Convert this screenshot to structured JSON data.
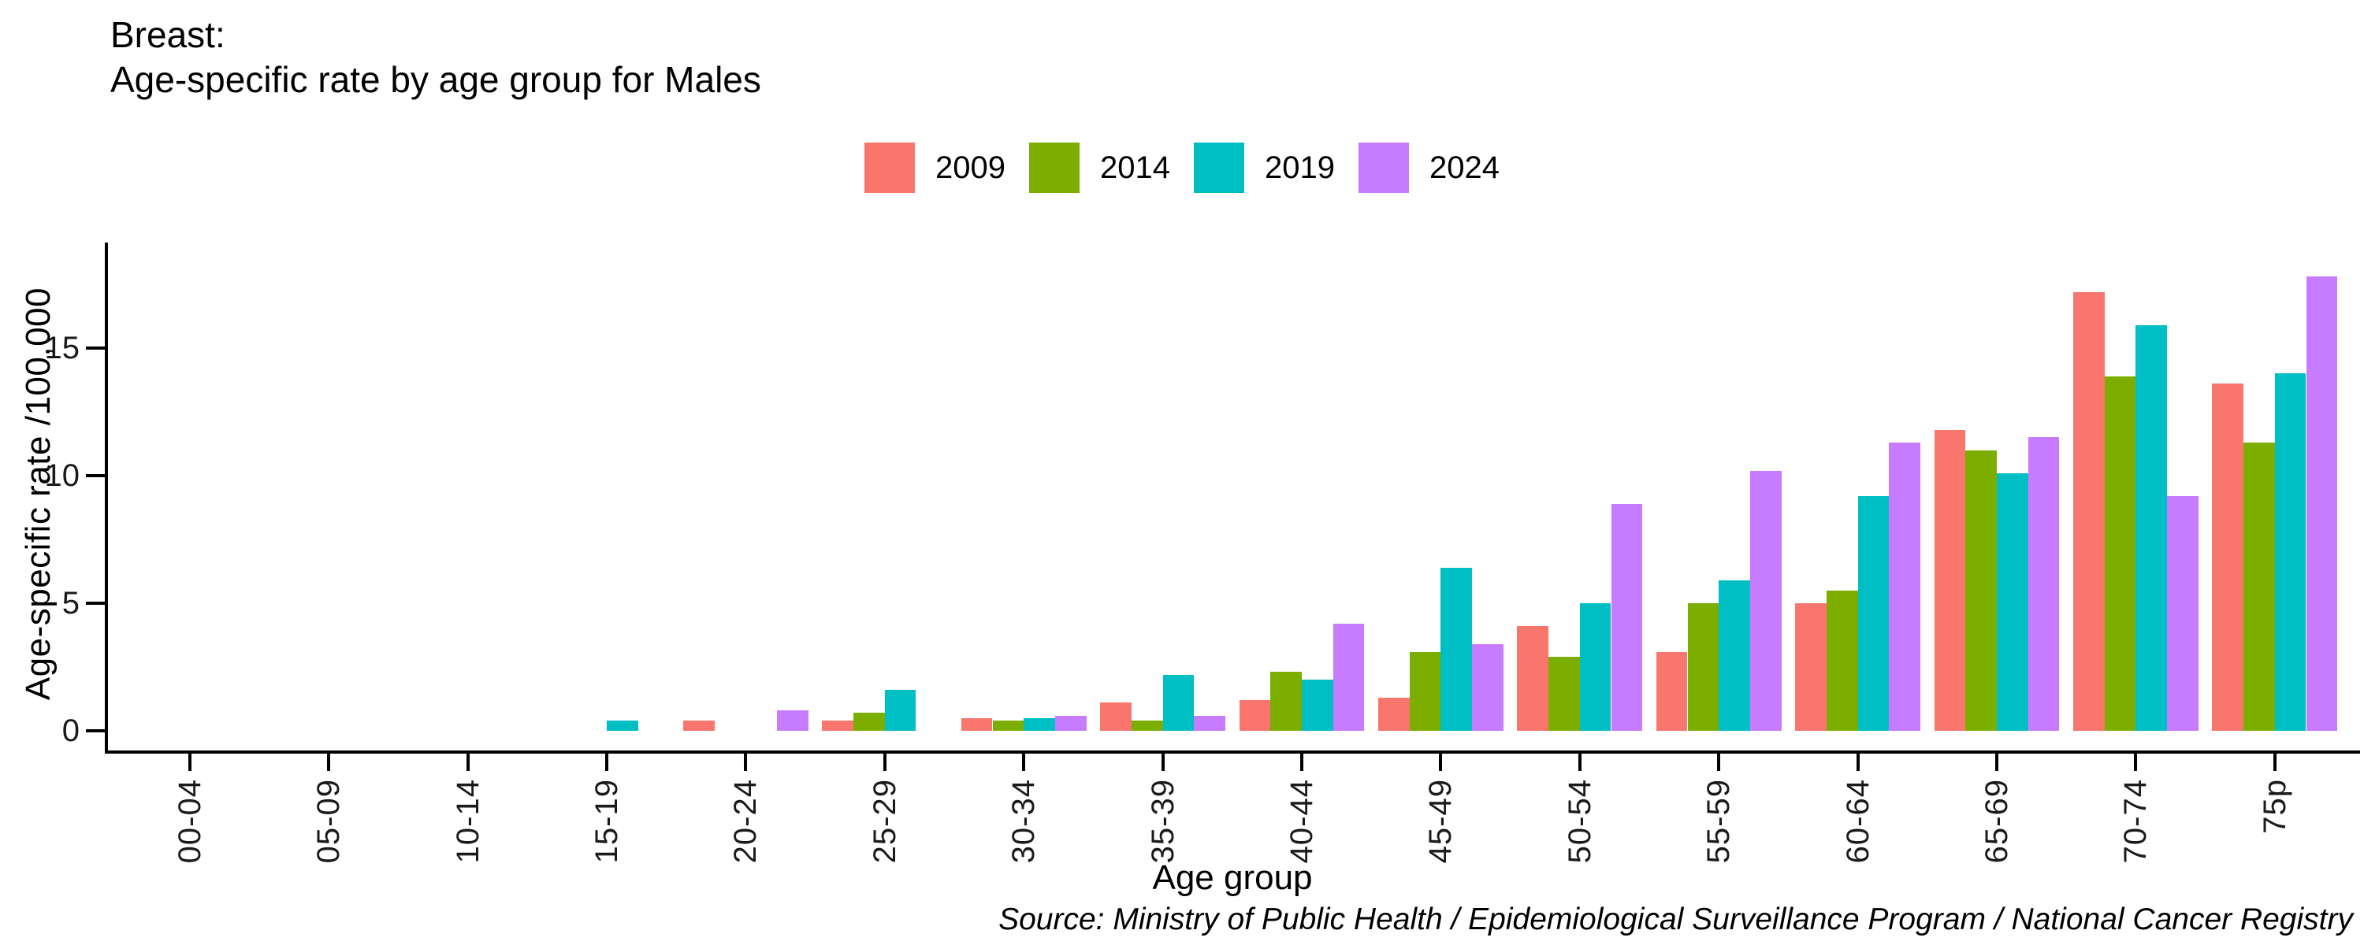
{
  "title": {
    "line1": "Breast:",
    "line2": "Age-specific rate by age group for Males"
  },
  "legend": [
    {
      "label": "2009",
      "color": "#F8766D"
    },
    {
      "label": "2014",
      "color": "#7CAE00"
    },
    {
      "label": "2019",
      "color": "#00BFC4"
    },
    {
      "label": "2024",
      "color": "#C77CFF"
    }
  ],
  "y_axis": {
    "title": "Age-specific rate /100,000"
  },
  "x_axis": {
    "title": "Age group"
  },
  "source_note": "Source: Ministry of Public Health / Epidemiological Surveillance Program / National Cancer Registry",
  "chart_data": {
    "type": "bar",
    "bar_mode": "grouped",
    "title": "Breast: Age-specific rate by age group for Males",
    "xlabel": "Age group",
    "ylabel": "Age-specific rate /100,000",
    "ylim": [
      0,
      19
    ],
    "y_ticks": [
      0,
      5,
      10,
      15
    ],
    "grid": false,
    "legend_position": "top-center",
    "categories": [
      "00-04",
      "05-09",
      "10-14",
      "15-19",
      "20-24",
      "25-29",
      "30-34",
      "35-39",
      "40-44",
      "45-49",
      "50-54",
      "55-59",
      "60-64",
      "65-69",
      "70-74",
      "75p"
    ],
    "series": [
      {
        "name": "2009",
        "color": "#F8766D",
        "values": [
          0,
          0,
          0,
          0,
          0.4,
          0.4,
          0.5,
          1.1,
          1.2,
          1.3,
          4.1,
          3.1,
          5.0,
          11.8,
          17.2,
          13.6
        ]
      },
      {
        "name": "2014",
        "color": "#7CAE00",
        "values": [
          0,
          0,
          0,
          0,
          0,
          0.7,
          0.4,
          0.4,
          2.3,
          3.1,
          2.9,
          5.0,
          5.5,
          11.0,
          13.9,
          11.3
        ]
      },
      {
        "name": "2019",
        "color": "#00BFC4",
        "values": [
          0,
          0,
          0,
          0.4,
          0,
          1.6,
          0.5,
          2.2,
          2.0,
          6.4,
          5.0,
          5.9,
          9.2,
          10.1,
          15.9,
          14.0
        ]
      },
      {
        "name": "2024",
        "color": "#C77CFF",
        "values": [
          0,
          0,
          0,
          0,
          0.8,
          0,
          0.6,
          0.6,
          4.2,
          3.4,
          8.9,
          10.2,
          11.3,
          11.5,
          9.2,
          17.8
        ]
      }
    ]
  }
}
